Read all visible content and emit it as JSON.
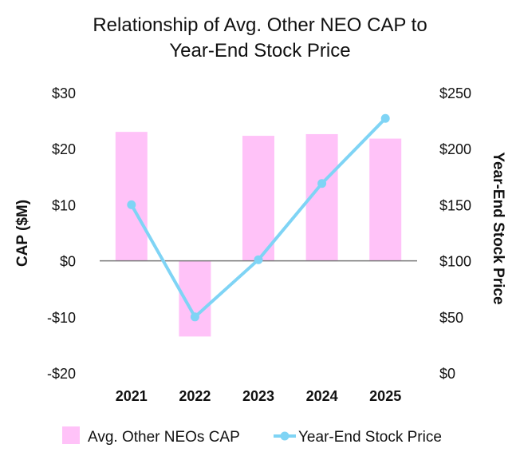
{
  "chart_data": {
    "type": "bar",
    "title_lines": [
      "Relationship of Avg. Other NEO CAP to",
      "Year-End Stock Price"
    ],
    "categories": [
      "2021",
      "2022",
      "2023",
      "2024",
      "2025"
    ],
    "y_left": {
      "label": "CAP ($M)",
      "range": [
        -20,
        30
      ],
      "ticks": [
        30,
        20,
        10,
        0,
        -10,
        -20
      ],
      "tick_labels": [
        "$30",
        "$20",
        "$10",
        "$0",
        "-$10",
        "-$20"
      ]
    },
    "y_right": {
      "label": "Year-End Stock Price",
      "range": [
        0,
        250
      ],
      "ticks": [
        250,
        200,
        150,
        100,
        50,
        0
      ],
      "tick_labels": [
        "$250",
        "$200",
        "$150",
        "$100",
        "$50",
        "$0"
      ]
    },
    "series": [
      {
        "name": "Avg. Other NEOs CAP",
        "kind": "bar",
        "axis": "left",
        "color": "#ffc2f8",
        "values": [
          23.0,
          -13.5,
          22.3,
          22.6,
          21.8
        ]
      },
      {
        "name": "Year-End Stock Price",
        "kind": "line",
        "axis": "right",
        "color": "#7fd4f5",
        "values": [
          150,
          50,
          101,
          169,
          227
        ]
      }
    ],
    "legend_position": "bottom",
    "grid": false
  }
}
